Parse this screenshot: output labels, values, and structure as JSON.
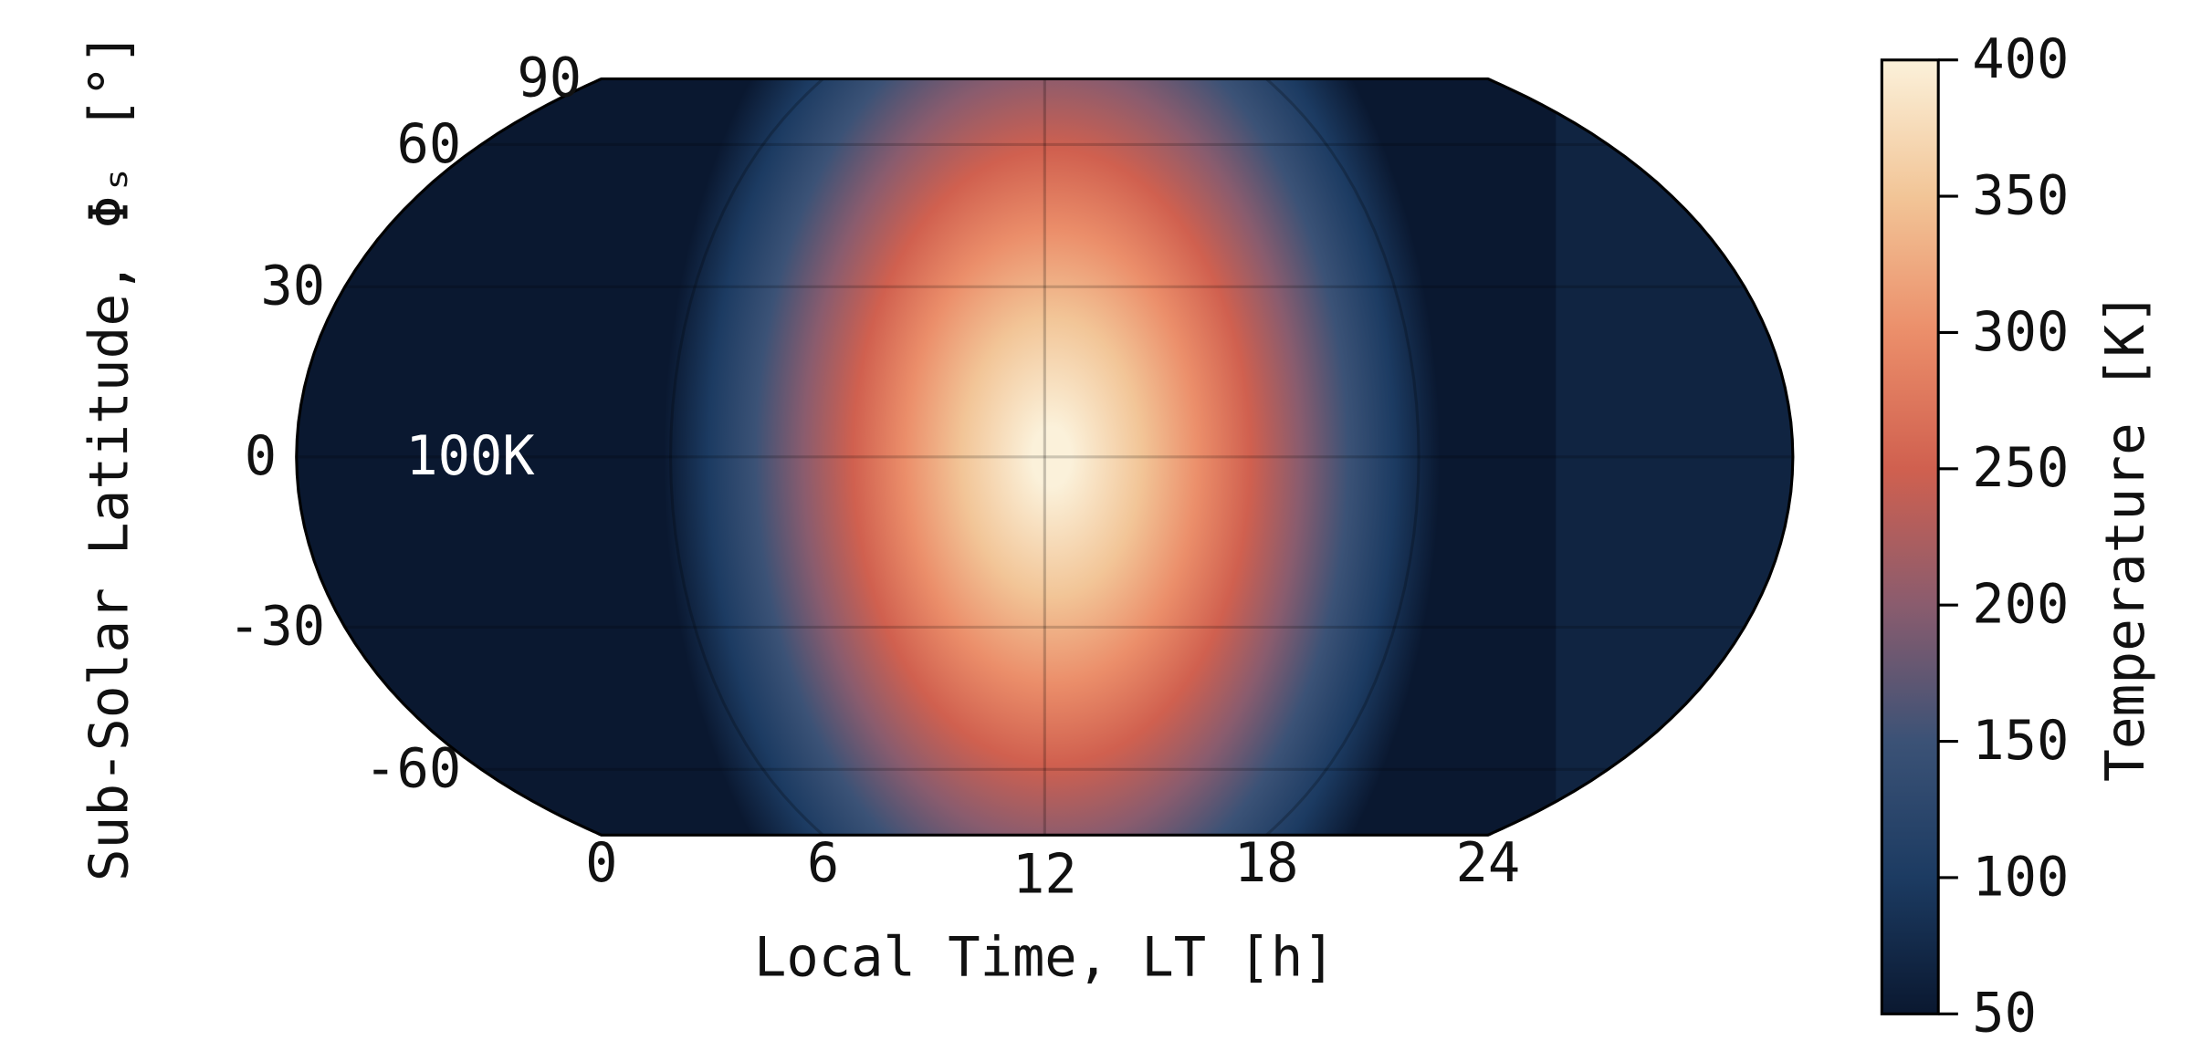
{
  "chart_data": {
    "type": "map",
    "projection": "equal-earth",
    "xlabel": "Local Time, LT [h]",
    "ylabel": "Sub-Solar Latitude, Φₛ [°]",
    "xlim": [
      0,
      24
    ],
    "xticks": [
      0,
      6,
      12,
      18,
      24
    ],
    "ylim": [
      -90,
      90
    ],
    "yticks": [
      -60,
      -30,
      0,
      30,
      60,
      90
    ],
    "grid": true,
    "colorbar_label": "Temperature [K]",
    "clim": [
      50,
      400
    ],
    "cticks": [
      50,
      100,
      150,
      200,
      250,
      300,
      350,
      400
    ],
    "colormap": [
      "#0a1830",
      "#1c3b62",
      "#3b5276",
      "#8a5c6e",
      "#d0604f",
      "#eb8e6a",
      "#f2c597",
      "#fbf1da"
    ],
    "annotation": "100K"
  }
}
